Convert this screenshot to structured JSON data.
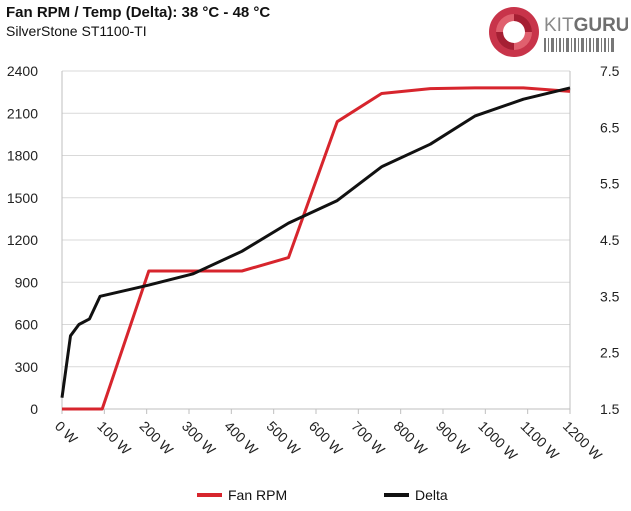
{
  "header": {
    "title": "Fan RPM / Temp (Delta): 38 °C - 48 °C",
    "subtitle": "SilverStone ST1100-TI"
  },
  "brand": {
    "logo_text": "KITGURU",
    "logo_text_light": "KIT",
    "logo_text_bold": "GURU",
    "logo_color": "#c8344a"
  },
  "colors": {
    "fan_rpm": "#d7252d",
    "delta": "#111111",
    "grid": "#d9d9d9",
    "axis": "#bfbfbf"
  },
  "chart_data": {
    "type": "line",
    "title": "Fan RPM / Temp (Delta): 38 °C - 48 °C",
    "subtitle": "SilverStone ST1100-TI",
    "x_tick_labels": [
      "0 W",
      "100 W",
      "200 W",
      "300 W",
      "400 W",
      "500 W",
      "600 W",
      "700 W",
      "800 W",
      "900 W",
      "1000 W",
      "1100 W",
      "1200 W"
    ],
    "x_ticks": [
      0,
      100,
      200,
      300,
      400,
      500,
      600,
      700,
      800,
      900,
      1000,
      1100,
      1200
    ],
    "xlim": [
      0,
      1200
    ],
    "ylim_left": [
      0,
      2400
    ],
    "y_ticks_left": [
      0,
      300,
      600,
      900,
      1200,
      1500,
      1800,
      2100,
      2400
    ],
    "y_tick_labels_left": [
      "0",
      "300",
      "600",
      "900",
      "1200",
      "1500",
      "1800",
      "2100",
      "2400"
    ],
    "ylim_right": [
      1.5,
      7.5
    ],
    "y_ticks_right": [
      1.5,
      2.5,
      3.5,
      4.5,
      5.5,
      6.5,
      7.5
    ],
    "y_tick_labels_right": [
      "1.5",
      "2.5",
      "3.5",
      "4.5",
      "5.5",
      "6.5",
      "7.5"
    ],
    "grid": "horizontal",
    "legend_position": "bottom",
    "series": [
      {
        "name": "Fan RPM",
        "axis": "left",
        "color": "#d7252d",
        "points": [
          [
            0,
            0
          ],
          [
            95,
            0
          ],
          [
            205,
            980
          ],
          [
            310,
            980
          ],
          [
            425,
            980
          ],
          [
            535,
            1075
          ],
          [
            650,
            2040
          ],
          [
            755,
            2240
          ],
          [
            870,
            2275
          ],
          [
            975,
            2280
          ],
          [
            1090,
            2280
          ],
          [
            1200,
            2255
          ]
        ]
      },
      {
        "name": "Delta",
        "axis": "right",
        "color": "#111111",
        "points": [
          [
            0,
            1.7
          ],
          [
            20,
            2.8
          ],
          [
            40,
            3.0
          ],
          [
            65,
            3.1
          ],
          [
            90,
            3.5
          ],
          [
            205,
            3.7
          ],
          [
            310,
            3.9
          ],
          [
            425,
            4.3
          ],
          [
            535,
            4.8
          ],
          [
            650,
            5.2
          ],
          [
            755,
            5.8
          ],
          [
            870,
            6.2
          ],
          [
            975,
            6.7
          ],
          [
            1090,
            7.0
          ],
          [
            1200,
            7.2
          ]
        ]
      }
    ]
  }
}
